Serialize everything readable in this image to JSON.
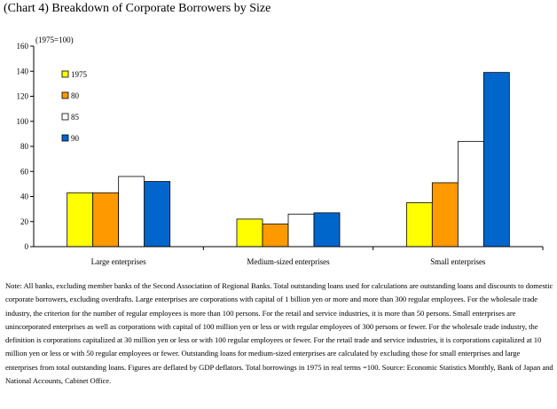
{
  "title": "(Chart 4) Breakdown of Corporate Borrowers by Size",
  "note": "Note: All banks, excluding member banks of the Second Association of Regional Banks.   Total outstanding loans used for calculations are outstanding loans and discounts to domestic corporate borrowers, excluding overdrafts.  Large enterprises are corporations with capital of 1 billion yen or more and more than 300 regular employees.   For the wholesale trade industry, the criterion for the number of regular employees is more than 100 persons.  For the retail and service industries, it is more than 50 persons.   Small enterprises are unincorporated enterprises as well as corporations with capital of 100 million yen or less or with regular employees of 300 persons or fewer. For the wholesale trade industry, the definition is corporations capitalized at 30 million yen or less or with 100 regular employees or fewer.   For the retail trade and service industries, it is corporations capitalized at 10 million yen or less or with 50 regular employees or fewer.    Outstanding loans for medium-sized enterprises are calculated by excluding those for small enterprises and large enterprises from total outstanding loans.   Figures are deflated by GDP deflators.   Total borrowings in 1975 in real terms =100.      Source: Economic Statistics Monthly, Bank of Japan and National Accounts, Cabinet Office.",
  "chart_data": {
    "type": "bar",
    "title": "",
    "ylabel": "(1975=100)",
    "xlabel": "",
    "ylim": [
      0,
      160
    ],
    "yticks": [
      "0",
      "20",
      "40",
      "60",
      "80",
      "100",
      "120",
      "140",
      "160"
    ],
    "categories": [
      "Large enterprises",
      "Medium-sized enterprises",
      "Small enterprises"
    ],
    "series": [
      {
        "name": "1975",
        "color": "#ffff00",
        "values": [
          43,
          22,
          35
        ]
      },
      {
        "name": "80",
        "color": "#ff9900",
        "values": [
          43,
          18,
          51
        ]
      },
      {
        "name": "85",
        "color": "#ffffff",
        "values": [
          56,
          26,
          84
        ]
      },
      {
        "name": "90",
        "color": "#0066cc",
        "values": [
          52,
          27,
          139
        ]
      }
    ],
    "legend_position": "top-left",
    "grid": false
  }
}
